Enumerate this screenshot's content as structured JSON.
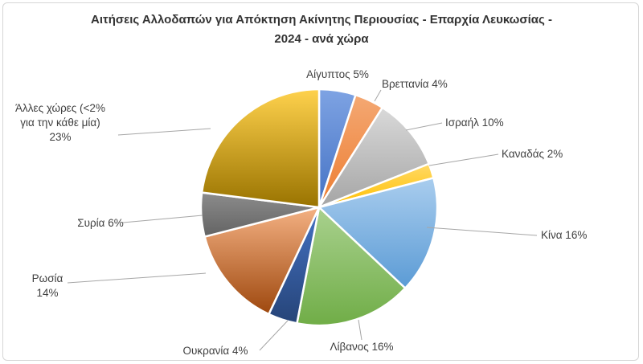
{
  "chart_data": {
    "type": "pie",
    "title": "Αιτήσεις Αλλοδαπών για Απόκτηση Ακίνητης Περιουσίας - Επαρχία Λευκωσίας -",
    "subtitle": "2024 - ανά χώρα",
    "slices": [
      {
        "label": "Αίγυπτος 5%",
        "value": 5,
        "color": "#4472c4"
      },
      {
        "label": "Βρεττανία 4%",
        "value": 4,
        "color": "#ed7d31"
      },
      {
        "label": "Ισραήλ 10%",
        "value": 10,
        "color": "#a5a5a5"
      },
      {
        "label": "Καναδάς 2%",
        "value": 2,
        "color": "#ffc000"
      },
      {
        "label": "Κίνα 16%",
        "value": 16,
        "color": "#5b9bd5"
      },
      {
        "label": "Λίβανος 16%",
        "value": 16,
        "color": "#70ad47"
      },
      {
        "label": "Ουκρανία 4%",
        "value": 4,
        "color": "#264478"
      },
      {
        "label": "Ρωσία",
        "label2": "14%",
        "value": 14,
        "color": "#9e480e"
      },
      {
        "label": "Συρία 6%",
        "value": 6,
        "color": "#636363"
      },
      {
        "label": "Άλλες χώρες (<2%",
        "label2": "για την κάθε μία)",
        "label3": "23%",
        "value": 23,
        "color": "#997300"
      }
    ],
    "legend": "none"
  }
}
